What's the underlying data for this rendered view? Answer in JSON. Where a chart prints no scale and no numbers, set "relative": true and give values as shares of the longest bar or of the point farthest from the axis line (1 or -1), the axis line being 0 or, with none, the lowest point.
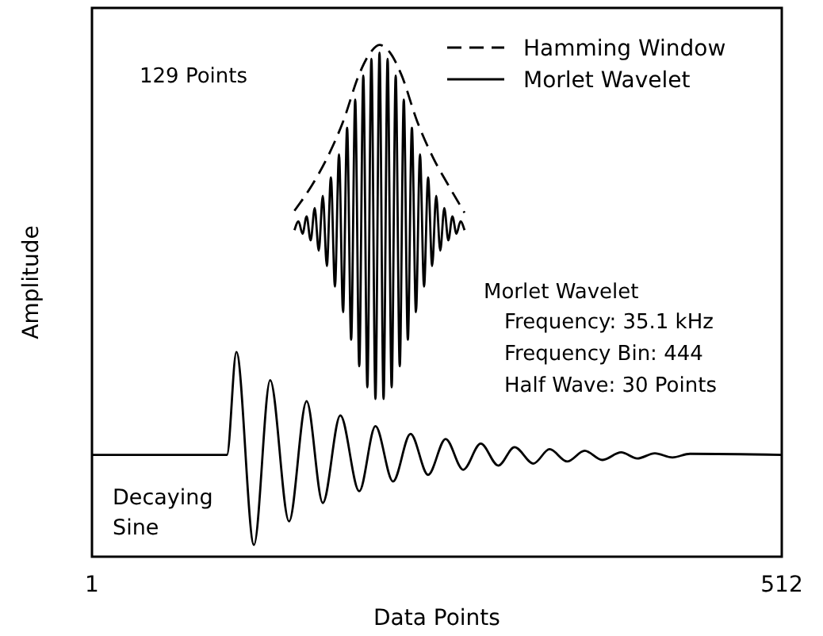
{
  "chart_data": {
    "type": "line",
    "relative": true,
    "xlabel": "Data Points",
    "ylabel": "Amplitude",
    "xlim": [
      1,
      512
    ],
    "xticks": [
      1,
      512
    ],
    "legend": "top right",
    "annotations": [
      "129 Points",
      "Morlet Wavelet",
      "Frequency: 35.1 kHz",
      "Frequency Bin: 444",
      "Half Wave: 30 Points"
    ],
    "series": [
      {
        "name": "Hamming Window",
        "color": "#000000",
        "line_style": "dashed",
        "x": [
          151,
          164,
          175,
          187,
          199,
          207,
          214,
          222,
          230,
          242,
          254,
          265,
          277
        ],
        "values": [
          0.676,
          0.726,
          0.778,
          0.85,
          0.943,
          0.984,
          1.0,
          0.984,
          0.943,
          0.85,
          0.778,
          0.726,
          0.672
        ]
      },
      {
        "name": "Morlet Wavelet",
        "color": "#000000",
        "line_style": "solid",
        "x": [
          151,
          154,
          157,
          160,
          163,
          166,
          169,
          172,
          175,
          178,
          181,
          184,
          187,
          190,
          193,
          196,
          199,
          202,
          205,
          208,
          211,
          214,
          217,
          220,
          223,
          226,
          229,
          232,
          235,
          238,
          241,
          244,
          247,
          250,
          253,
          256,
          259,
          262,
          265,
          268,
          271,
          274,
          277
        ],
        "values": [
          0.638,
          0.655,
          0.631,
          0.665,
          0.618,
          0.681,
          0.598,
          0.705,
          0.568,
          0.741,
          0.528,
          0.786,
          0.478,
          0.838,
          0.424,
          0.893,
          0.372,
          0.94,
          0.331,
          0.973,
          0.308,
          0.985,
          0.308,
          0.973,
          0.331,
          0.94,
          0.372,
          0.893,
          0.424,
          0.838,
          0.478,
          0.786,
          0.528,
          0.741,
          0.568,
          0.705,
          0.598,
          0.681,
          0.618,
          0.665,
          0.631,
          0.655,
          0.638
        ]
      },
      {
        "name": "Decaying Sine",
        "color": "#000000",
        "line_style": "solid",
        "x": [
          1,
          101,
          108,
          121,
          133,
          147,
          160,
          172,
          185,
          199,
          211,
          224,
          237,
          250,
          263,
          276,
          289,
          302,
          314,
          328,
          340,
          353,
          366,
          379,
          393,
          405,
          418,
          431,
          444,
          512
        ],
        "values": [
          0.199,
          0.199,
          0.4,
          0.023,
          0.345,
          0.069,
          0.304,
          0.105,
          0.276,
          0.128,
          0.255,
          0.147,
          0.24,
          0.16,
          0.23,
          0.17,
          0.221,
          0.178,
          0.214,
          0.182,
          0.21,
          0.186,
          0.207,
          0.189,
          0.204,
          0.192,
          0.202,
          0.194,
          0.201,
          0.199
        ]
      }
    ]
  }
}
